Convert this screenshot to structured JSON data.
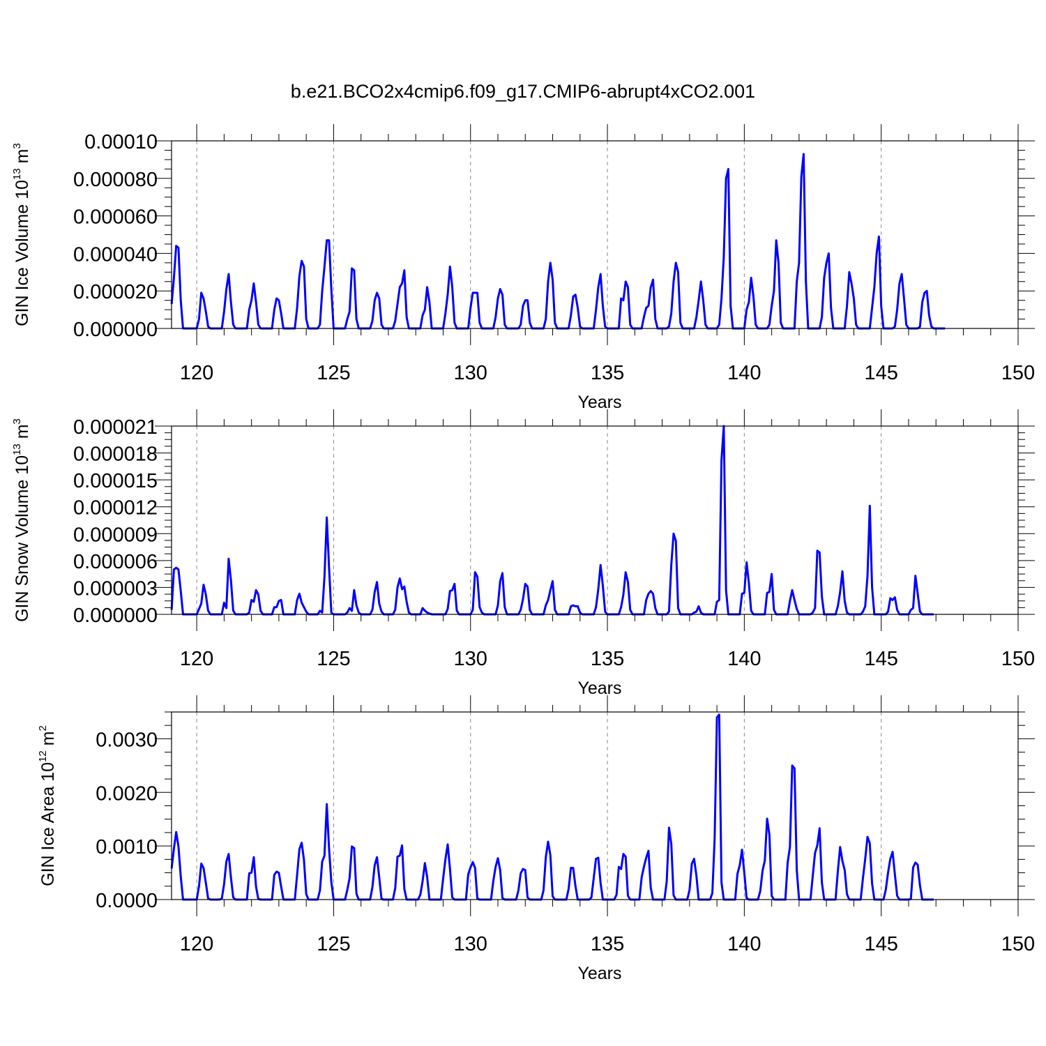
{
  "title": "b.e21.BCO2x4cmip6.f09_g17.CMIP6-abrupt4xCO2.001",
  "series_color": "#0000ff",
  "chart_data": [
    {
      "type": "line",
      "title": "b.e21.BCO2x4cmip6.f09_g17.CMIP6-abrupt4xCO2.001",
      "xlabel": "Years",
      "ylabel": "GIN Ice Volume 10",
      "ylabel_sup": "13",
      "ylabel_unit": " m",
      "ylabel_unit_sup": "3",
      "xlim": [
        119.08,
        150.0
      ],
      "ylim": [
        0.0,
        0.0001
      ],
      "grid": "vertical dashed lines at major x ticks",
      "x_ticks": [
        120,
        125,
        130,
        135,
        140,
        145,
        150
      ],
      "x_tick_labels": [
        "120",
        "125",
        "130",
        "135",
        "140",
        "145",
        "150"
      ],
      "y_ticks": [
        0.0,
        2e-05,
        4e-05,
        6e-05,
        8e-05,
        0.0001
      ],
      "y_tick_labels": [
        "0.000000",
        "0.000020",
        "0.000040",
        "0.000060",
        "0.000080",
        "0.00010"
      ],
      "x_start": 119.083,
      "x_step": 0.0833333,
      "values": [
        1.3e-05,
        2.7e-05,
        4.4e-05,
        4.3e-05,
        1.5e-05,
        0,
        0,
        0,
        0,
        0,
        0,
        0,
        5e-06,
        1.9e-05,
        1.6e-05,
        9e-06,
        1e-06,
        0,
        0,
        0,
        0,
        0,
        0,
        9e-06,
        2.1e-05,
        2.9e-05,
        1.4e-05,
        2e-06,
        0,
        0,
        0,
        0,
        0,
        0,
        1e-05,
        1.5e-05,
        2.4e-05,
        1.4e-05,
        2e-06,
        0,
        0,
        0,
        0,
        0,
        0,
        1e-05,
        1.6e-05,
        1.5e-05,
        8e-06,
        0,
        0,
        0,
        0,
        0,
        0,
        1.1e-05,
        2.8e-05,
        3.6e-05,
        3.3e-05,
        5e-06,
        0,
        0,
        0,
        0,
        0,
        2e-06,
        2e-05,
        3.3e-05,
        4.7e-05,
        4.7e-05,
        2.1e-05,
        0,
        0,
        0,
        0,
        0,
        0,
        5e-06,
        9e-06,
        3.2e-05,
        3.1e-05,
        5e-06,
        0,
        0,
        0,
        0,
        0,
        0,
        4e-06,
        1.5e-05,
        1.9e-05,
        1.6e-05,
        2e-06,
        0,
        0,
        0,
        0,
        0,
        4e-06,
        1.3e-05,
        2.2e-05,
        2.4e-05,
        3.1e-05,
        6e-06,
        0,
        0,
        0,
        0,
        0,
        0,
        7e-06,
        1e-05,
        2.2e-05,
        1.4e-05,
        0,
        0,
        0,
        0,
        0,
        0,
        8e-06,
        1.8e-05,
        3.3e-05,
        2.2e-05,
        3e-06,
        0,
        0,
        0,
        0,
        0,
        0,
        1.1e-05,
        1.9e-05,
        1.9e-05,
        1.9e-05,
        3e-06,
        0,
        0,
        0,
        0,
        0,
        0,
        6e-06,
        1.6e-05,
        2.1e-05,
        1.8e-05,
        2e-06,
        0,
        0,
        0,
        0,
        0,
        0,
        2e-06,
        1.2e-05,
        1.5e-05,
        1.5e-05,
        3e-06,
        0,
        0,
        0,
        0,
        0,
        0,
        5e-06,
        2.5e-05,
        3.5e-05,
        2.6e-05,
        3e-06,
        0,
        0,
        0,
        0,
        0,
        0,
        7e-06,
        1.7e-05,
        1.8e-05,
        1.1e-05,
        1e-06,
        0,
        0,
        0,
        0,
        0,
        0,
        1e-05,
        2.2e-05,
        2.9e-05,
        1.2e-05,
        1e-06,
        0,
        0,
        0,
        0,
        0,
        0,
        1.6e-05,
        1.5e-05,
        2.5e-05,
        2.2e-05,
        2e-06,
        0,
        0,
        0,
        0,
        0,
        6e-06,
        1.1e-05,
        1.2e-05,
        2.2e-05,
        2.6e-05,
        5e-06,
        0,
        0,
        0,
        0,
        0,
        1e-06,
        8e-06,
        2.5e-05,
        3.5e-05,
        3e-05,
        3e-06,
        0,
        0,
        0,
        0,
        0,
        0,
        6e-06,
        1.5e-05,
        2.5e-05,
        1.5e-05,
        2e-06,
        0,
        0,
        0,
        0,
        0,
        2e-06,
        1.6e-05,
        3.8e-05,
        8e-05,
        8.5e-05,
        1.2e-05,
        0,
        0,
        0,
        0,
        0,
        0,
        1e-05,
        1.4e-05,
        2.7e-05,
        1.7e-05,
        2e-06,
        0,
        0,
        0,
        0,
        0,
        2e-06,
        1.2e-05,
        2e-05,
        4.7e-05,
        3.5e-05,
        3e-06,
        0,
        0,
        0,
        0,
        0,
        0,
        2.5e-05,
        3.5e-05,
        8.1e-05,
        9.3e-05,
        2.5e-05,
        0,
        0,
        0,
        0,
        0,
        0,
        6e-06,
        2.7e-05,
        3.5e-05,
        4e-05,
        1.1e-05,
        0,
        0,
        0,
        0,
        0,
        0,
        1.2e-05,
        3e-05,
        2.4e-05,
        1.6e-05,
        2e-06,
        0,
        0,
        0,
        0,
        0,
        0,
        1.1e-05,
        2.2e-05,
        4e-05,
        4.9e-05,
        1.2e-05,
        0,
        0,
        0,
        0,
        0,
        1e-06,
        1e-05,
        2.4e-05,
        2.9e-05,
        1.6e-05,
        2e-06,
        0,
        0,
        0,
        0,
        0,
        1e-06,
        1.4e-05,
        1.9e-05,
        2e-05,
        7e-06,
        1e-06,
        0,
        0,
        0,
        0,
        0,
        0
      ]
    },
    {
      "type": "line",
      "xlabel": "Years",
      "ylabel": "GIN Snow Volume 10",
      "ylabel_sup": "13",
      "ylabel_unit": " m",
      "ylabel_unit_sup": "3",
      "xlim": [
        119.08,
        150.0
      ],
      "ylim": [
        0.0,
        2.1e-05
      ],
      "grid": "vertical dashed lines at major x ticks",
      "x_ticks": [
        120,
        125,
        130,
        135,
        140,
        145,
        150
      ],
      "x_tick_labels": [
        "120",
        "125",
        "130",
        "135",
        "140",
        "145",
        "150"
      ],
      "y_ticks": [
        0.0,
        3e-06,
        6e-06,
        9e-06,
        1.2e-05,
        1.5e-05,
        1.8e-05,
        2.1e-05
      ],
      "y_tick_labels": [
        "0.000000",
        "0.000003",
        "0.000006",
        "0.000009",
        "0.000012",
        "0.000015",
        "0.000018",
        "0.000021"
      ],
      "x_start": 119.083,
      "x_step": 0.0833333,
      "values": [
        5e-07,
        5e-06,
        5.2e-06,
        5e-06,
        2.6e-06,
        0,
        0,
        0,
        0,
        0,
        0,
        0,
        6e-07,
        1.2e-06,
        3.3e-06,
        2.2e-06,
        4e-07,
        0,
        0,
        0,
        0,
        0,
        0,
        1.3e-06,
        7e-07,
        6.2e-06,
        3.8e-06,
        4e-07,
        0,
        0,
        0,
        0,
        0,
        0,
        2e-07,
        1.6e-06,
        1.4e-06,
        2.7e-06,
        2.2e-06,
        4e-07,
        0,
        0,
        0,
        0,
        0,
        8e-07,
        8e-07,
        1.5e-06,
        1.6e-06,
        0,
        0,
        0,
        0,
        0,
        0,
        1.6e-06,
        2.3e-06,
        1.3e-06,
        8e-07,
        3e-07,
        0,
        0,
        0,
        0,
        0,
        4e-07,
        2e-07,
        4.2e-06,
        1.08e-05,
        5.2e-06,
        2e-07,
        0,
        0,
        0,
        0,
        0,
        0,
        2e-07,
        7e-07,
        4e-07,
        2.7e-06,
        1e-06,
        2e-07,
        0,
        0,
        0,
        0,
        0,
        5e-07,
        2.5e-06,
        3.6e-06,
        1.2e-06,
        3e-07,
        0,
        0,
        0,
        0,
        0,
        5e-07,
        3e-06,
        4e-06,
        2.8e-06,
        3.1e-06,
        1.4e-06,
        2e-07,
        0,
        0,
        0,
        0,
        0,
        7e-07,
        4e-07,
        2e-07,
        1e-07,
        0,
        0,
        0,
        0,
        0,
        0,
        0,
        6e-07,
        2.6e-06,
        2.7e-06,
        3.4e-06,
        4e-07,
        0,
        0,
        0,
        0,
        0,
        0,
        5e-07,
        4.7e-06,
        4.2e-06,
        8e-07,
        2e-07,
        0,
        0,
        0,
        0,
        0,
        0,
        1e-06,
        3.7e-06,
        4.6e-06,
        8e-07,
        0,
        0,
        0,
        0,
        0,
        0,
        5e-07,
        1.7e-06,
        3.4e-06,
        3.1e-06,
        5e-07,
        0,
        0,
        0,
        0,
        0,
        0,
        1e-06,
        1.6e-06,
        2.7e-06,
        3.7e-06,
        5e-07,
        0,
        0,
        0,
        0,
        0,
        0,
        9e-07,
        1e-06,
        9e-07,
        9e-07,
        2e-07,
        0,
        0,
        0,
        0,
        0,
        0,
        8e-07,
        2.8e-06,
        5.5e-06,
        3.2e-06,
        3e-07,
        0,
        0,
        0,
        0,
        0,
        0,
        8e-07,
        2.2e-06,
        4.7e-06,
        3.6e-06,
        5e-07,
        0,
        0,
        0,
        0,
        0,
        0,
        1.6e-06,
        2.3e-06,
        2.6e-06,
        2.3e-06,
        7e-07,
        0,
        0,
        0,
        0,
        0,
        3e-07,
        5.5e-06,
        9e-06,
        8.2e-06,
        7e-07,
        0,
        0,
        0,
        0,
        0,
        0,
        2e-07,
        3e-07,
        9e-07,
        2e-07,
        0,
        0,
        0,
        0,
        0,
        0,
        1.4e-06,
        1.6e-06,
        1.72e-05,
        2.1e-05,
        2.7e-06,
        0,
        0,
        0,
        0,
        0,
        0,
        2.3e-06,
        2.4e-06,
        5.8e-06,
        3.5e-06,
        4e-07,
        0,
        0,
        0,
        0,
        0,
        0,
        2.4e-06,
        2.5e-06,
        4.5e-06,
        5e-07,
        0,
        0,
        0,
        0,
        0,
        0,
        1.5e-06,
        2.7e-06,
        1.6e-06,
        6e-07,
        0,
        0,
        0,
        0,
        0,
        0,
        2e-07,
        7e-07,
        7.1e-06,
        6.9e-06,
        2e-06,
        0,
        0,
        0,
        0,
        0,
        0,
        9e-07,
        2.5e-06,
        4.8e-06,
        1.5e-06,
        2e-07,
        0,
        0,
        0,
        0,
        0,
        0,
        3e-07,
        9e-07,
        4.3e-06,
        1.21e-05,
        3e-06,
        0,
        0,
        0,
        0,
        0,
        0,
        3e-07,
        1.8e-06,
        1.6e-06,
        1.9e-06,
        5e-07,
        0,
        0,
        0,
        0,
        0,
        5e-07,
        7e-07,
        4.3e-06,
        2.3e-06,
        3e-07,
        0,
        0,
        0,
        0,
        0,
        0
      ]
    },
    {
      "type": "line",
      "xlabel": "Years",
      "ylabel": "GIN Ice Area 10",
      "ylabel_sup": "12",
      "ylabel_unit": " m",
      "ylabel_unit_sup": "2",
      "xlim": [
        119.08,
        150.0
      ],
      "ylim": [
        0.0,
        0.0035
      ],
      "grid": "vertical dashed lines at major x ticks",
      "x_ticks": [
        120,
        125,
        130,
        135,
        140,
        145,
        150
      ],
      "x_tick_labels": [
        "120",
        "125",
        "130",
        "135",
        "140",
        "145",
        "150"
      ],
      "y_ticks": [
        0.0,
        0.001,
        0.002,
        0.003
      ],
      "y_tick_labels": [
        "0.0000",
        "0.0010",
        "0.0020",
        "0.0030"
      ],
      "x_start": 119.083,
      "x_step": 0.0833333,
      "values": [
        0.00058,
        0.00095,
        0.00126,
        0.00099,
        0.00043,
        0,
        0,
        0,
        0,
        0,
        0,
        0,
        0.00025,
        0.00067,
        0.00059,
        0.00031,
        2e-05,
        0,
        0,
        0,
        0,
        0,
        2e-05,
        0.00029,
        0.00071,
        0.00085,
        0.00041,
        4e-05,
        0,
        0,
        0,
        0,
        0,
        0,
        0.00049,
        0.0005,
        0.00079,
        0.00024,
        1e-05,
        0,
        0,
        0,
        0,
        0,
        0,
        0.00046,
        0.00052,
        0.0005,
        0.00024,
        0,
        0,
        0,
        0,
        0,
        0,
        0.00046,
        0.00094,
        0.00106,
        0.00074,
        0.0001,
        0,
        0,
        0,
        0,
        0,
        0.00017,
        0.00071,
        0.00082,
        0.00178,
        0.00095,
        0.00033,
        0,
        0,
        0,
        0,
        0,
        0,
        0.00018,
        0.0004,
        0.00099,
        0.00096,
        0.00011,
        0,
        0,
        0,
        0,
        0,
        0,
        0.00023,
        0.00064,
        0.00079,
        0.00041,
        1e-05,
        0,
        0,
        0,
        0,
        0,
        0.00021,
        0.0008,
        0.00082,
        0.00101,
        0.0002,
        0,
        0,
        0,
        0,
        0,
        0,
        9e-05,
        0.00034,
        0.00068,
        0.00042,
        0,
        0,
        0,
        0,
        0,
        0,
        0.00039,
        0.00075,
        0.00103,
        0.00057,
        4e-05,
        0,
        0,
        0,
        0,
        0,
        0,
        0.00047,
        0.0006,
        0.0007,
        0.00059,
        2e-05,
        0,
        0,
        0,
        0,
        0,
        0,
        0.00035,
        0.00061,
        0.00077,
        0.00055,
        3e-05,
        0,
        0,
        0,
        0,
        0,
        0,
        0.00017,
        0.00049,
        0.00057,
        0.00055,
        4e-05,
        0,
        0,
        0,
        0,
        0,
        0,
        0.00017,
        0.00079,
        0.00108,
        0.00083,
        6e-05,
        0,
        0,
        0,
        0,
        0,
        0,
        0.0002,
        0.00059,
        0.00059,
        0.00025,
        0,
        0,
        0,
        0,
        0,
        0,
        4e-05,
        0.0004,
        0.00076,
        0.00078,
        0.00031,
        0,
        0,
        0,
        0,
        0,
        0,
        9e-05,
        0.00061,
        0.00057,
        0.00085,
        0.0008,
        7e-05,
        0,
        0,
        0,
        0,
        0,
        0.00041,
        0.00061,
        0.00078,
        0.00091,
        0.00022,
        0,
        0,
        0,
        0,
        0,
        0,
        0.00034,
        0.00134,
        0.00104,
        8e-05,
        0,
        0,
        0,
        0,
        0,
        0,
        0.00018,
        0.00067,
        0.00076,
        0.00045,
        0,
        0,
        0,
        0,
        0,
        0,
        0.00012,
        0.00114,
        0.0034,
        0.00345,
        0.00032,
        0,
        0,
        0,
        0,
        0,
        0,
        0.00048,
        0.00064,
        0.00093,
        0.0005,
        3e-05,
        0,
        0,
        0,
        0,
        0,
        0.00016,
        0.00054,
        0.00073,
        0.00151,
        0.00121,
        7e-05,
        0,
        0,
        0,
        0,
        0,
        0,
        0.00069,
        0.00098,
        0.0025,
        0.00245,
        0.00055,
        0,
        0,
        0,
        0,
        0,
        0,
        0.00044,
        0.00087,
        0.00101,
        0.00133,
        0.00032,
        0,
        0,
        0,
        0,
        0,
        0,
        0.00053,
        0.00098,
        0.00072,
        0.00055,
        0.0001,
        0,
        0,
        0,
        0,
        0,
        0,
        0.0004,
        0.00076,
        0.00117,
        0.00105,
        0.0003,
        0,
        0,
        0,
        0,
        0,
        0.00018,
        0.0005,
        0.00076,
        0.00089,
        0.00047,
        7e-05,
        0,
        0,
        0,
        0,
        0,
        1e-05,
        0.0006,
        0.00069,
        0.00065,
        0.00026,
        0,
        0,
        0,
        0,
        0,
        0
      ]
    }
  ]
}
